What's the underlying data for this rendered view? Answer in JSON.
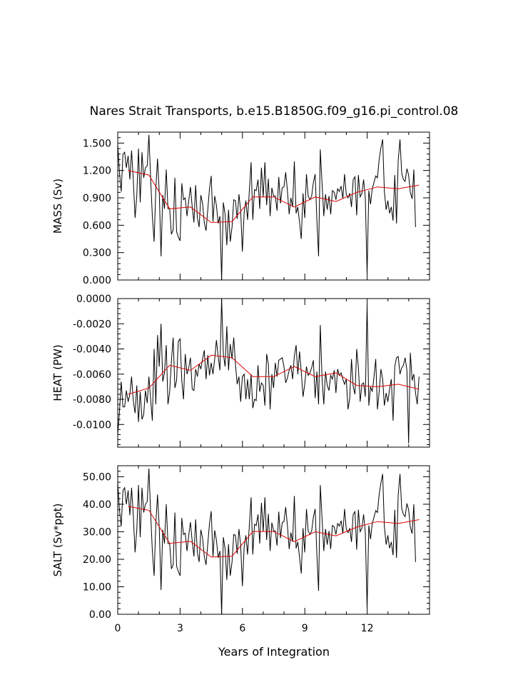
{
  "chart_data": {
    "type": "line",
    "title": "Nares Strait Transports, b.e15.B1850G.f09_g16.pi_control.08",
    "xlabel": "Years of Integration",
    "xlim": [
      0,
      15
    ],
    "xticks": [
      0,
      3,
      6,
      9,
      12
    ],
    "xtick_labels": [
      "0",
      "3",
      "6",
      "9",
      "12"
    ],
    "colors": {
      "monthly": "#000000",
      "annual": "#e00000"
    },
    "panels": [
      {
        "name": "mass",
        "ylabel": "MASS (Sv)",
        "ylim": [
          0.0,
          1.62
        ],
        "yticks": [
          0.0,
          0.3,
          0.6,
          0.9,
          1.2,
          1.5
        ],
        "ytick_labels": [
          "0.000",
          "0.300",
          "0.600",
          "0.900",
          "1.200",
          "1.500"
        ],
        "series": [
          {
            "name": "monthly",
            "x0": 0.0,
            "dx": 0.0833,
            "values": [
              1.49,
              1.18,
              0.97,
              1.38,
              1.4,
              1.23,
              1.36,
              1.1,
              1.42,
              1.1,
              0.68,
              0.92,
              1.44,
              0.85,
              1.4,
              1.12,
              1.23,
              1.25,
              1.59,
              1.12,
              0.7,
              0.42,
              1.0,
              1.33,
              0.96,
              0.26,
              0.93,
              0.78,
              1.21,
              0.78,
              0.78,
              0.5,
              0.55,
              1.12,
              0.53,
              0.47,
              0.43,
              1.06,
              0.88,
              0.9,
              0.7,
              0.87,
              1.02,
              0.8,
              0.63,
              1.04,
              0.68,
              0.58,
              0.93,
              0.84,
              0.63,
              0.54,
              0.77,
              1.0,
              1.14,
              0.64,
              0.92,
              0.82,
              0.62,
              0.7,
              0.0,
              0.85,
              0.72,
              0.38,
              0.77,
              0.42,
              0.58,
              0.88,
              0.87,
              0.67,
              0.94,
              0.76,
              0.31,
              0.74,
              0.87,
              0.66,
              0.97,
              1.29,
              0.66,
              0.99,
              0.98,
              1.1,
              0.78,
              1.23,
              0.91,
              1.29,
              0.82,
              1.11,
              0.7,
              1.01,
              0.92,
              0.92,
              0.76,
              1.13,
              0.84,
              1.01,
              1.02,
              1.18,
              0.98,
              0.72,
              0.9,
              0.8,
              1.3,
              0.73,
              0.8,
              0.63,
              0.45,
              0.95,
              0.68,
              1.16,
              0.92,
              0.88,
              0.92,
              1.07,
              1.16,
              0.66,
              0.26,
              1.43,
              1.05,
              0.7,
              0.94,
              0.77,
              0.92,
              0.72,
              0.98,
              0.96,
              0.88,
              1.0,
              0.97,
              1.03,
              0.89,
              1.16,
              0.94,
              0.9,
              0.95,
              0.8,
              1.1,
              1.13,
              0.71,
              1.15,
              0.91,
              0.95,
              1.1,
              0.9,
              0.07,
              0.98,
              0.83,
              1.0,
              1.07,
              1.14,
              1.12,
              1.32,
              1.45,
              1.54,
              0.97,
              0.77,
              0.87,
              0.73,
              0.8,
              0.65,
              1.15,
              0.62,
              1.31,
              1.54,
              1.17,
              1.1,
              1.08,
              1.22,
              1.15,
              0.96,
              0.89,
              1.21,
              0.58
            ]
          },
          {
            "name": "annual",
            "x": [
              0.5,
              1.5,
              2.5,
              3.5,
              4.5,
              5.5,
              6.5,
              7.5,
              8.5,
              9.5,
              10.5,
              11.5,
              12.5,
              13.5,
              14.5
            ],
            "values": [
              1.2,
              1.15,
              0.78,
              0.8,
              0.63,
              0.64,
              0.91,
              0.91,
              0.8,
              0.91,
              0.86,
              0.96,
              1.02,
              1.0,
              1.04
            ]
          }
        ]
      },
      {
        "name": "heat",
        "ylabel": "HEAT (PW)",
        "ylim": [
          -0.0118,
          0.0
        ],
        "yticks": [
          0.0,
          -0.002,
          -0.004,
          -0.006,
          -0.008,
          -0.01
        ],
        "ytick_labels": [
          "0.0000",
          "-0.0020",
          "-0.0040",
          "-0.0060",
          "-0.0080",
          "-0.0100"
        ],
        "series": [
          {
            "name": "monthly",
            "x0": 0.0,
            "dx": 0.0833,
            "values": [
              -0.0108,
              -0.009,
              -0.0066,
              -0.0086,
              -0.0086,
              -0.0073,
              -0.0082,
              -0.0076,
              -0.0062,
              -0.0081,
              -0.0091,
              -0.0069,
              -0.0098,
              -0.0074,
              -0.0096,
              -0.0092,
              -0.0073,
              -0.0083,
              -0.0062,
              -0.008,
              -0.0097,
              -0.004,
              -0.0084,
              -0.0029,
              -0.0054,
              -0.002,
              -0.0066,
              -0.0059,
              -0.0037,
              -0.0084,
              -0.0074,
              -0.005,
              -0.0031,
              -0.0071,
              -0.0065,
              -0.0034,
              -0.0032,
              -0.0065,
              -0.008,
              -0.0044,
              -0.006,
              -0.0055,
              -0.0047,
              -0.0072,
              -0.0073,
              -0.0056,
              -0.0062,
              -0.0052,
              -0.0056,
              -0.0048,
              -0.0041,
              -0.0064,
              -0.0045,
              -0.0061,
              -0.0051,
              -0.006,
              -0.0048,
              -0.0033,
              -0.0046,
              -0.0057,
              0.0,
              -0.0044,
              -0.0054,
              -0.0022,
              -0.0057,
              -0.0036,
              -0.0048,
              -0.0031,
              -0.0052,
              -0.0068,
              -0.0062,
              -0.0082,
              -0.0062,
              -0.006,
              -0.008,
              -0.0064,
              -0.008,
              -0.006,
              -0.0087,
              -0.008,
              -0.0081,
              -0.0053,
              -0.0074,
              -0.0067,
              -0.0069,
              -0.0085,
              -0.0044,
              -0.0052,
              -0.0088,
              -0.006,
              -0.0071,
              -0.0051,
              -0.0062,
              -0.0049,
              -0.0048,
              -0.0047,
              -0.0054,
              -0.0067,
              -0.0063,
              -0.0057,
              -0.0053,
              -0.0064,
              -0.0046,
              -0.0037,
              -0.006,
              -0.0042,
              -0.0058,
              -0.0078,
              -0.0068,
              -0.0054,
              -0.0061,
              -0.0059,
              -0.0055,
              -0.0049,
              -0.0079,
              -0.0058,
              -0.0084,
              -0.0021,
              -0.0064,
              -0.0084,
              -0.0058,
              -0.0069,
              -0.0073,
              -0.0061,
              -0.0064,
              -0.0057,
              -0.0075,
              -0.0056,
              -0.0061,
              -0.0059,
              -0.0064,
              -0.0068,
              -0.0064,
              -0.0088,
              -0.0079,
              -0.0048,
              -0.007,
              -0.0076,
              -0.004,
              -0.0055,
              -0.0082,
              -0.0068,
              -0.0067,
              -0.0078,
              -0.0005,
              -0.0085,
              -0.007,
              -0.0074,
              -0.0062,
              -0.0048,
              -0.0088,
              -0.0074,
              -0.0056,
              -0.0064,
              -0.0085,
              -0.0075,
              -0.0082,
              -0.0072,
              -0.0064,
              -0.0097,
              -0.0054,
              -0.0047,
              -0.0046,
              -0.006,
              -0.0055,
              -0.0053,
              -0.0047,
              -0.0057,
              -0.0115,
              -0.0043,
              -0.0065,
              -0.006,
              -0.0075,
              -0.0084,
              -0.0062
            ]
          },
          {
            "name": "annual",
            "x": [
              0.5,
              1.5,
              2.5,
              3.5,
              4.5,
              5.5,
              6.5,
              7.5,
              8.5,
              9.5,
              10.5,
              11.5,
              12.5,
              13.5,
              14.5
            ],
            "values": [
              -0.0076,
              -0.0071,
              -0.0053,
              -0.0057,
              -0.0045,
              -0.0047,
              -0.0062,
              -0.0062,
              -0.0054,
              -0.0062,
              -0.0059,
              -0.0069,
              -0.007,
              -0.0068,
              -0.0072
            ]
          }
        ]
      },
      {
        "name": "salt",
        "ylabel": "SALT (Sv*ppt)",
        "ylim": [
          0.0,
          54.0
        ],
        "yticks": [
          0.0,
          10.0,
          20.0,
          30.0,
          40.0,
          50.0
        ],
        "ytick_labels": [
          "0.00",
          "10.00",
          "20.00",
          "30.00",
          "40.00",
          "50.00"
        ],
        "series": [
          {
            "name": "monthly",
            "x0": 0.0,
            "dx": 0.0833,
            "values": [
              47.8,
              38.0,
              32.0,
              45.0,
              46.0,
              40.0,
              45.0,
              36.0,
              46.0,
              36.0,
              22.5,
              30.5,
              47.0,
              28.0,
              46.0,
              37.0,
              40.0,
              41.0,
              53.0,
              37.0,
              23.0,
              14.0,
              33.0,
              43.5,
              31.5,
              8.8,
              30.7,
              25.7,
              40.0,
              25.7,
              25.7,
              16.5,
              18.0,
              37.0,
              17.5,
              15.5,
              14.0,
              35.0,
              29.0,
              29.5,
              23.0,
              28.7,
              33.5,
              26.5,
              21.0,
              34.5,
              22.5,
              19.0,
              30.7,
              27.7,
              21.0,
              18.0,
              25.5,
              33.0,
              37.5,
              21.0,
              30.5,
              27.0,
              20.5,
              23.0,
              0.0,
              28.0,
              23.7,
              12.5,
              25.5,
              14.0,
              19.0,
              29.0,
              28.7,
              22.0,
              31.0,
              25.0,
              10.2,
              24.5,
              28.7,
              21.7,
              32.0,
              42.5,
              21.7,
              32.7,
              32.3,
              36.3,
              25.7,
              40.5,
              30.0,
              42.5,
              27.0,
              36.5,
              23.0,
              33.3,
              30.3,
              30.3,
              25.0,
              37.3,
              27.7,
              33.3,
              33.7,
              39.0,
              32.3,
              23.7,
              29.7,
              26.3,
              43.0,
              24.0,
              26.3,
              20.7,
              14.8,
              31.3,
              22.5,
              38.3,
              30.3,
              29.0,
              30.3,
              35.3,
              38.3,
              21.7,
              8.5,
              47.0,
              34.7,
              23.0,
              31.0,
              25.3,
              30.3,
              23.7,
              32.3,
              31.7,
              29.0,
              33.0,
              32.0,
              34.0,
              29.3,
              38.3,
              31.0,
              29.7,
              31.3,
              26.3,
              36.3,
              37.3,
              23.5,
              38.0,
              30.0,
              31.3,
              36.3,
              29.7,
              2.2,
              32.3,
              27.3,
              33.0,
              35.3,
              37.7,
              37.0,
              43.5,
              47.8,
              51.0,
              32.0,
              25.3,
              28.7,
              24.0,
              26.3,
              21.5,
              38.0,
              20.5,
              43.3,
              51.0,
              38.5,
              36.3,
              35.5,
              40.3,
              38.0,
              31.7,
              29.3,
              40.0,
              19.0
            ]
          },
          {
            "name": "annual",
            "x": [
              0.5,
              1.5,
              2.5,
              3.5,
              4.5,
              5.5,
              6.5,
              7.5,
              8.5,
              9.5,
              10.5,
              11.5,
              12.5,
              13.5,
              14.5
            ],
            "values": [
              39.2,
              37.8,
              25.8,
              26.5,
              20.8,
              21.1,
              30.1,
              30.1,
              26.4,
              30.0,
              28.5,
              31.7,
              33.7,
              33.0,
              34.4
            ]
          }
        ]
      }
    ]
  }
}
